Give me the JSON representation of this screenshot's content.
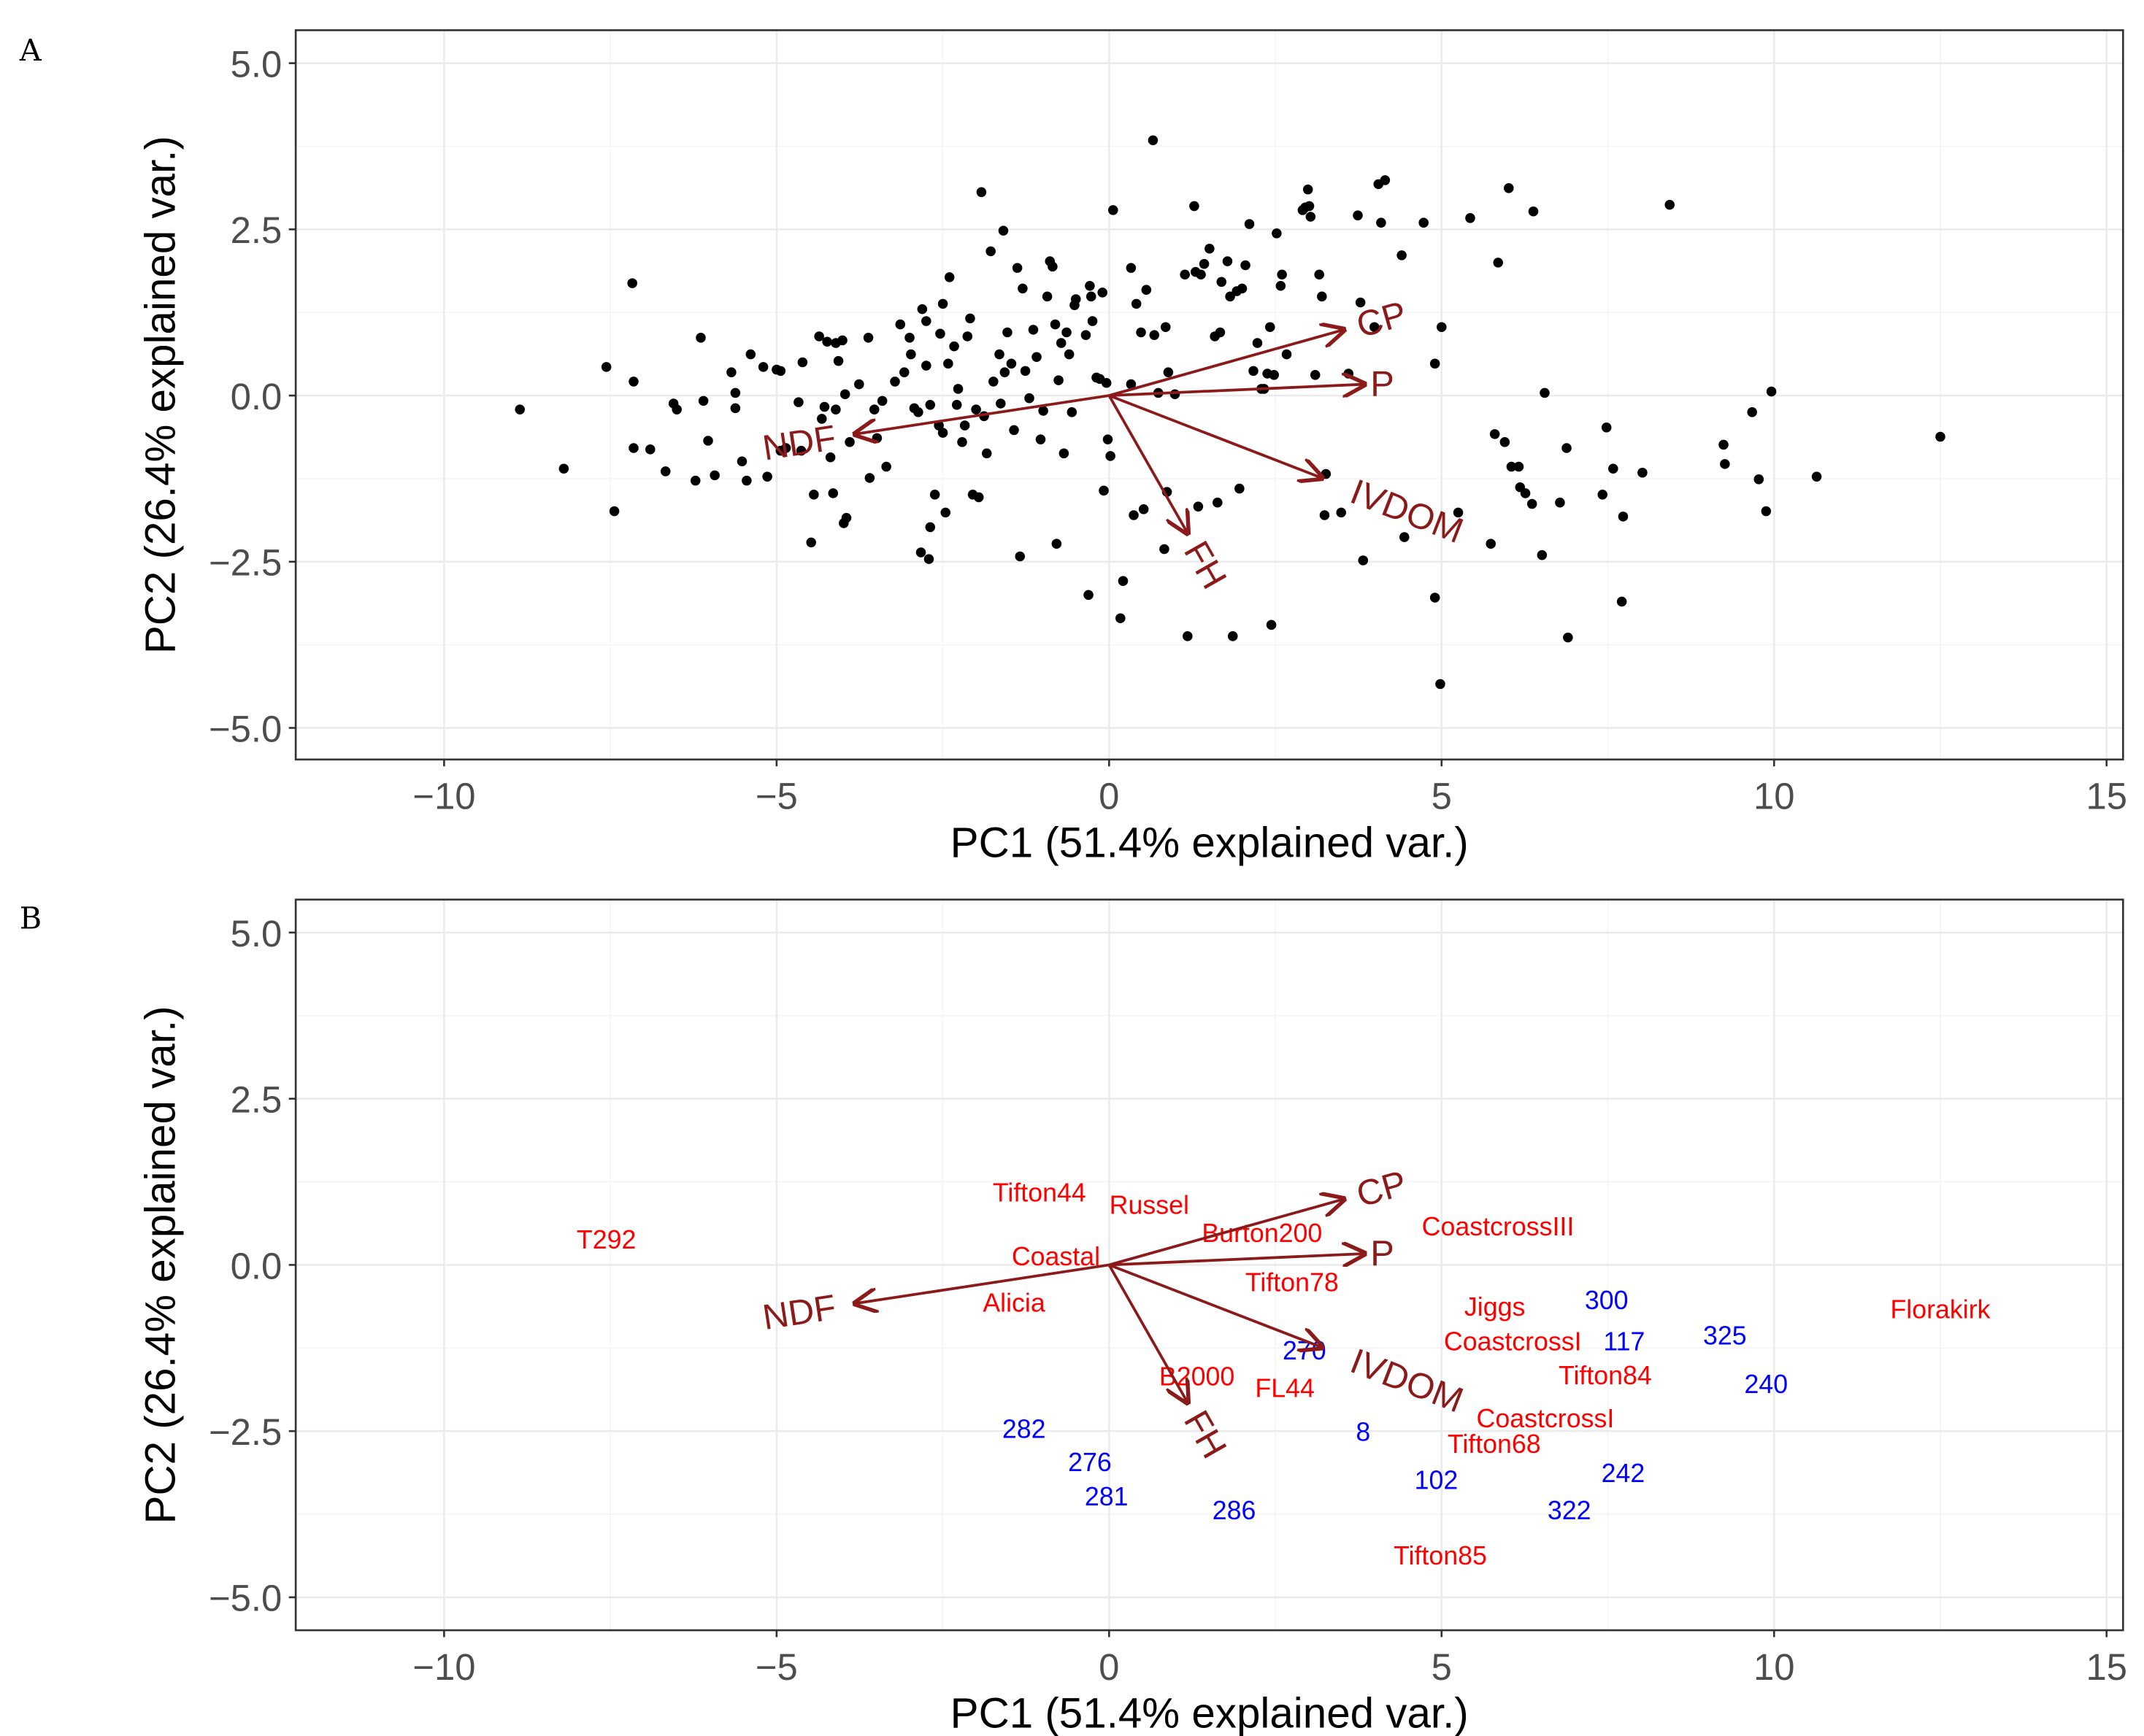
{
  "chart_data": [
    {
      "panel": "A",
      "type": "scatter",
      "subtype": "pca-biplot",
      "xlabel": "PC1 (51.4% explained var.)",
      "ylabel": "PC2 (26.4% explained var.)",
      "xlim": [
        -12.5,
        15.5
      ],
      "ylim": [
        -5.4,
        5.4
      ],
      "xticks": [
        -10,
        -5,
        0,
        5,
        10,
        15
      ],
      "xtick_labels": [
        "−10",
        "−5",
        "0",
        "5",
        "10",
        "15"
      ],
      "yticks": [
        5,
        2.5,
        0,
        -2.5,
        -5
      ],
      "ytick_labels": [
        "5.0",
        "2.5",
        "0.0",
        "−2.5",
        "−5.0"
      ],
      "grid": true,
      "point_color": "#000000",
      "arrow_color": "#8b1a1a",
      "loadings": [
        {
          "name": "CP",
          "x": 3.53,
          "y": 0.99
        },
        {
          "name": "P",
          "x": 3.84,
          "y": 0.17
        },
        {
          "name": "IVDOM",
          "x": 3.2,
          "y": -1.24
        },
        {
          "name": "NDF",
          "x": -3.82,
          "y": -0.58
        },
        {
          "name": "FH",
          "x": 1.18,
          "y": -2.07
        }
      ],
      "points": [
        [
          -8.86,
          -0.21
        ],
        [
          -8.2,
          -1.1
        ],
        [
          -7.56,
          0.43
        ],
        [
          -7.44,
          -1.74
        ],
        [
          -7.17,
          1.69
        ],
        [
          -7.15,
          0.21
        ],
        [
          -7.15,
          -0.79
        ],
        [
          -6.9,
          -0.81
        ],
        [
          -6.67,
          -1.14
        ],
        [
          -6.55,
          -0.12
        ],
        [
          -6.5,
          -0.21
        ],
        [
          -6.22,
          -1.28
        ],
        [
          -6.14,
          0.87
        ],
        [
          -6.1,
          -0.08
        ],
        [
          -6.03,
          -0.68
        ],
        [
          -5.93,
          -1.2
        ],
        [
          -5.68,
          0.35
        ],
        [
          -5.62,
          -0.19
        ],
        [
          -5.62,
          0.04
        ],
        [
          -5.52,
          -0.99
        ],
        [
          -5.45,
          -1.28
        ],
        [
          -5.39,
          0.62
        ],
        [
          -5.2,
          0.43
        ],
        [
          -5.14,
          -1.22
        ],
        [
          -5.0,
          0.39
        ],
        [
          -4.94,
          0.37
        ],
        [
          -4.94,
          -0.83
        ],
        [
          -4.86,
          -0.79
        ],
        [
          -4.67,
          -0.1
        ],
        [
          -4.63,
          -0.83
        ],
        [
          -4.61,
          0.5
        ],
        [
          -4.48,
          -2.21
        ],
        [
          -4.44,
          -1.49
        ],
        [
          -4.36,
          0.89
        ],
        [
          -4.32,
          -0.35
        ],
        [
          -4.28,
          -0.17
        ],
        [
          -4.24,
          0.81
        ],
        [
          -4.19,
          -0.93
        ],
        [
          -4.15,
          -1.47
        ],
        [
          -4.11,
          0.79
        ],
        [
          -4.11,
          -0.21
        ],
        [
          -4.07,
          0.52
        ],
        [
          -4.01,
          0.83
        ],
        [
          -3.99,
          -1.92
        ],
        [
          -3.97,
          0.02
        ],
        [
          -3.95,
          -1.84
        ],
        [
          -3.9,
          -0.7
        ],
        [
          -3.76,
          0.17
        ],
        [
          -3.62,
          0.87
        ],
        [
          -3.6,
          -1.24
        ],
        [
          -3.53,
          -0.21
        ],
        [
          -3.49,
          -0.64
        ],
        [
          -3.41,
          -0.08
        ],
        [
          -3.35,
          -1.07
        ],
        [
          -3.22,
          0.21
        ],
        [
          -3.14,
          1.07
        ],
        [
          -3.08,
          0.35
        ],
        [
          -3.0,
          0.87
        ],
        [
          -2.98,
          0.62
        ],
        [
          -2.93,
          -0.19
        ],
        [
          -2.87,
          -0.25
        ],
        [
          -2.83,
          -2.36
        ],
        [
          -2.81,
          1.3
        ],
        [
          -2.75,
          1.12
        ],
        [
          -2.75,
          0.45
        ],
        [
          -2.71,
          -2.46
        ],
        [
          -2.69,
          -1.98
        ],
        [
          -2.69,
          -0.14
        ],
        [
          -2.62,
          -1.49
        ],
        [
          -2.56,
          -0.45
        ],
        [
          -2.54,
          0.93
        ],
        [
          -2.5,
          1.38
        ],
        [
          -2.5,
          -0.56
        ],
        [
          -2.46,
          -1.76
        ],
        [
          -2.42,
          0.48
        ],
        [
          -2.4,
          1.78
        ],
        [
          -2.33,
          0.74
        ],
        [
          -2.29,
          -0.14
        ],
        [
          -2.27,
          0.1
        ],
        [
          -2.21,
          -0.7
        ],
        [
          -2.17,
          -0.45
        ],
        [
          -2.13,
          0.89
        ],
        [
          -2.09,
          1.16
        ],
        [
          -2.05,
          -1.49
        ],
        [
          -2.0,
          -0.21
        ],
        [
          -1.96,
          -1.53
        ],
        [
          -1.92,
          3.06
        ],
        [
          -1.88,
          -0.31
        ],
        [
          -1.84,
          -0.87
        ],
        [
          -1.78,
          2.17
        ],
        [
          -1.74,
          0.21
        ],
        [
          -1.65,
          0.62
        ],
        [
          -1.63,
          -0.12
        ],
        [
          -1.59,
          2.48
        ],
        [
          -1.57,
          0.35
        ],
        [
          -1.53,
          0.95
        ],
        [
          -1.47,
          0.48
        ],
        [
          -1.43,
          -0.52
        ],
        [
          -1.38,
          1.92
        ],
        [
          -1.34,
          -2.42
        ],
        [
          -1.3,
          1.61
        ],
        [
          -1.26,
          0.37
        ],
        [
          -1.2,
          -0.04
        ],
        [
          -1.14,
          0.99
        ],
        [
          -1.09,
          0.58
        ],
        [
          -1.03,
          -0.66
        ],
        [
          -0.99,
          -0.23
        ],
        [
          -0.93,
          1.49
        ],
        [
          -0.89,
          2.02
        ],
        [
          -0.85,
          1.94
        ],
        [
          -0.81,
          1.07
        ],
        [
          -0.79,
          -2.23
        ],
        [
          -0.76,
          0.23
        ],
        [
          -0.72,
          0.79
        ],
        [
          -0.68,
          -0.87
        ],
        [
          -0.64,
          0.95
        ],
        [
          -0.6,
          0.62
        ],
        [
          -0.56,
          -0.25
        ],
        [
          -0.52,
          1.36
        ],
        [
          -0.5,
          1.45
        ],
        [
          -0.35,
          0.91
        ],
        [
          -0.31,
          -3.0
        ],
        [
          -0.29,
          1.65
        ],
        [
          -0.27,
          1.49
        ],
        [
          -0.25,
          1.12
        ],
        [
          -0.19,
          0.27
        ],
        [
          -0.14,
          0.25
        ],
        [
          -0.1,
          1.55
        ],
        [
          -0.08,
          -1.43
        ],
        [
          -0.04,
          0.19
        ],
        [
          -0.02,
          -0.66
        ],
        [
          0.02,
          -0.91
        ],
        [
          0.06,
          2.79
        ],
        [
          0.17,
          -3.35
        ],
        [
          0.21,
          -2.79
        ],
        [
          0.33,
          1.92
        ],
        [
          0.33,
          0.17
        ],
        [
          0.37,
          -1.8
        ],
        [
          0.41,
          1.38
        ],
        [
          0.48,
          0.95
        ],
        [
          0.52,
          -1.71
        ],
        [
          0.56,
          1.59
        ],
        [
          0.66,
          3.84
        ],
        [
          0.68,
          0.91
        ],
        [
          0.74,
          0.04
        ],
        [
          0.83,
          -2.31
        ],
        [
          0.85,
          1.03
        ],
        [
          0.87,
          -1.45
        ],
        [
          0.89,
          0.35
        ],
        [
          0.99,
          0.02
        ],
        [
          1.14,
          1.82
        ],
        [
          1.18,
          -3.62
        ],
        [
          1.28,
          2.85
        ],
        [
          1.3,
          1.86
        ],
        [
          1.34,
          -1.67
        ],
        [
          1.38,
          1.82
        ],
        [
          1.43,
          1.98
        ],
        [
          1.51,
          2.21
        ],
        [
          1.59,
          0.89
        ],
        [
          1.63,
          -1.61
        ],
        [
          1.67,
          0.95
        ],
        [
          1.69,
          1.71
        ],
        [
          1.78,
          2.02
        ],
        [
          1.82,
          1.49
        ],
        [
          1.86,
          -3.62
        ],
        [
          1.92,
          1.57
        ],
        [
          1.96,
          -1.4
        ],
        [
          2.0,
          1.61
        ],
        [
          2.05,
          1.96
        ],
        [
          2.11,
          2.58
        ],
        [
          2.17,
          0.37
        ],
        [
          2.23,
          0.79
        ],
        [
          2.29,
          0.1
        ],
        [
          2.33,
          0.1
        ],
        [
          2.38,
          0.33
        ],
        [
          2.42,
          1.03
        ],
        [
          2.44,
          -3.45
        ],
        [
          2.48,
          0.31
        ],
        [
          2.52,
          2.44
        ],
        [
          2.58,
          1.65
        ],
        [
          2.6,
          1.82
        ],
        [
          2.67,
          0.62
        ],
        [
          2.91,
          2.79
        ],
        [
          2.95,
          2.83
        ],
        [
          2.99,
          3.1
        ],
        [
          3.01,
          2.85
        ],
        [
          3.03,
          2.69
        ],
        [
          3.1,
          0.31
        ],
        [
          3.16,
          1.82
        ],
        [
          3.2,
          1.49
        ],
        [
          3.24,
          -1.8
        ],
        [
          3.26,
          -1.18
        ],
        [
          3.49,
          -1.76
        ],
        [
          3.6,
          0.33
        ],
        [
          3.74,
          2.71
        ],
        [
          3.78,
          1.4
        ],
        [
          3.82,
          -2.48
        ],
        [
          3.99,
          1.03
        ],
        [
          4.05,
          3.18
        ],
        [
          4.09,
          2.6
        ],
        [
          4.15,
          3.24
        ],
        [
          4.4,
          2.11
        ],
        [
          4.44,
          -2.13
        ],
        [
          4.73,
          2.6
        ],
        [
          4.9,
          0.48
        ],
        [
          4.9,
          -3.04
        ],
        [
          4.98,
          -4.34
        ],
        [
          5.0,
          1.03
        ],
        [
          5.25,
          -1.76
        ],
        [
          5.43,
          2.67
        ],
        [
          5.74,
          -2.23
        ],
        [
          5.8,
          -0.58
        ],
        [
          5.85,
          2.0
        ],
        [
          5.95,
          -0.7
        ],
        [
          6.01,
          3.12
        ],
        [
          6.05,
          -1.07
        ],
        [
          6.16,
          -1.07
        ],
        [
          6.18,
          -1.38
        ],
        [
          6.26,
          -1.47
        ],
        [
          6.36,
          -1.63
        ],
        [
          6.38,
          2.77
        ],
        [
          6.51,
          -2.4
        ],
        [
          6.55,
          0.04
        ],
        [
          6.78,
          -1.61
        ],
        [
          6.88,
          -0.79
        ],
        [
          6.9,
          -3.64
        ],
        [
          7.42,
          -1.49
        ],
        [
          7.48,
          -0.48
        ],
        [
          7.58,
          -1.1
        ],
        [
          7.71,
          -3.1
        ],
        [
          7.73,
          -1.82
        ],
        [
          8.02,
          -1.16
        ],
        [
          8.43,
          2.87
        ],
        [
          9.24,
          -0.74
        ],
        [
          9.26,
          -1.03
        ],
        [
          9.67,
          -0.25
        ],
        [
          9.77,
          -1.26
        ],
        [
          9.88,
          -1.74
        ],
        [
          9.96,
          0.06
        ],
        [
          10.64,
          -1.22
        ],
        [
          12.5,
          -0.62
        ]
      ]
    },
    {
      "panel": "B",
      "type": "scatter",
      "subtype": "pca-biplot-labels",
      "xlabel": "PC1 (51.4% explained var.)",
      "ylabel": "PC2 (26.4% explained var.)",
      "xlim": [
        -12.5,
        15.5
      ],
      "ylim": [
        -5.4,
        5.4
      ],
      "xticks": [
        -10,
        -5,
        0,
        5,
        10,
        15
      ],
      "xtick_labels": [
        "−10",
        "−5",
        "0",
        "5",
        "10",
        "15"
      ],
      "yticks": [
        5,
        2.5,
        0,
        -2.5,
        -5
      ],
      "ytick_labels": [
        "5.0",
        "2.5",
        "0.0",
        "−2.5",
        "−5.0"
      ],
      "grid": true,
      "arrow_color": "#8b1a1a",
      "group_colors": {
        "cultivar": "#ff0000",
        "accession": "#0000ff"
      },
      "loadings": [
        {
          "name": "CP",
          "x": 3.53,
          "y": 0.99
        },
        {
          "name": "P",
          "x": 3.84,
          "y": 0.17
        },
        {
          "name": "IVDOM",
          "x": 3.2,
          "y": -1.24
        },
        {
          "name": "NDF",
          "x": -3.82,
          "y": -0.58
        },
        {
          "name": "FH",
          "x": 1.18,
          "y": -2.07
        }
      ],
      "labels": [
        {
          "text": "T292",
          "x": -7.56,
          "y": 0.39,
          "group": "cultivar"
        },
        {
          "text": "Tifton44",
          "x": -0.8,
          "y": 1.1,
          "group": "cultivar"
        },
        {
          "text": "Russel",
          "x": 0.48,
          "y": 0.91,
          "group": "cultivar"
        },
        {
          "text": "CoastcrossIII",
          "x": 5.0,
          "y": 1.0,
          "group": "cultivar"
        },
        {
          "text": "Coastal",
          "x": -0.8,
          "y": 0.14,
          "group": "cultivar"
        },
        {
          "text": "Burton200",
          "x": 2.3,
          "y": 0.2,
          "group": "cultivar"
        },
        {
          "text": "Tifton78",
          "x": 2.75,
          "y": 0.04,
          "group": "cultivar"
        },
        {
          "text": "Alicia",
          "x": -1.43,
          "y": -0.56,
          "group": "cultivar"
        },
        {
          "text": "Jiggs",
          "x": 5.8,
          "y": -0.62,
          "group": "cultivar"
        },
        {
          "text": "Florakirk",
          "x": 12.5,
          "y": -0.66,
          "group": "cultivar"
        },
        {
          "text": "CoastcrossI",
          "x": 6.07,
          "y": -1.14,
          "group": "cultivar"
        },
        {
          "text": "Tifton84",
          "x": 7.46,
          "y": -1.55,
          "group": "cultivar"
        },
        {
          "text": "B2000",
          "x": 1.32,
          "y": -1.67,
          "group": "cultivar"
        },
        {
          "text": "FL44",
          "x": 3.47,
          "y": -1.78,
          "group": "cultivar"
        },
        {
          "text": "CoastcrossI",
          "x": 5.3,
          "y": -1.78,
          "group": "cultivar"
        },
        {
          "text": "Tifton68",
          "x": 5.79,
          "y": -2.27,
          "group": "cultivar"
        },
        {
          "text": "Tifton85",
          "x": 4.98,
          "y": -4.36,
          "group": "cultivar"
        },
        {
          "text": "300",
          "x": 7.48,
          "y": -0.52,
          "group": "accession"
        },
        {
          "text": "117",
          "x": 7.58,
          "y": -1.14,
          "group": "accession"
        },
        {
          "text": "325",
          "x": 9.26,
          "y": -1.05,
          "group": "accession"
        },
        {
          "text": "270",
          "x": 3.04,
          "y": -1.28,
          "group": "accession"
        },
        {
          "text": "240",
          "x": 9.88,
          "y": -1.78,
          "group": "accession"
        },
        {
          "text": "282",
          "x": -1.28,
          "y": -2.46,
          "group": "accession"
        },
        {
          "text": "8",
          "x": 3.82,
          "y": -2.5,
          "group": "accession"
        },
        {
          "text": "276",
          "x": -0.29,
          "y": -3.06,
          "group": "accession"
        },
        {
          "text": "281",
          "x": -0.04,
          "y": -3.37,
          "group": "accession"
        },
        {
          "text": "102",
          "x": 4.92,
          "y": -3.06,
          "group": "accession"
        },
        {
          "text": "242",
          "x": 7.73,
          "y": -3.12,
          "group": "accession"
        },
        {
          "text": "286",
          "x": 1.88,
          "y": -3.68,
          "group": "accession"
        },
        {
          "text": "322",
          "x": 6.92,
          "y": -3.68,
          "group": "accession"
        }
      ]
    }
  ],
  "panels": {
    "a_letter": "A",
    "b_letter": "B"
  }
}
